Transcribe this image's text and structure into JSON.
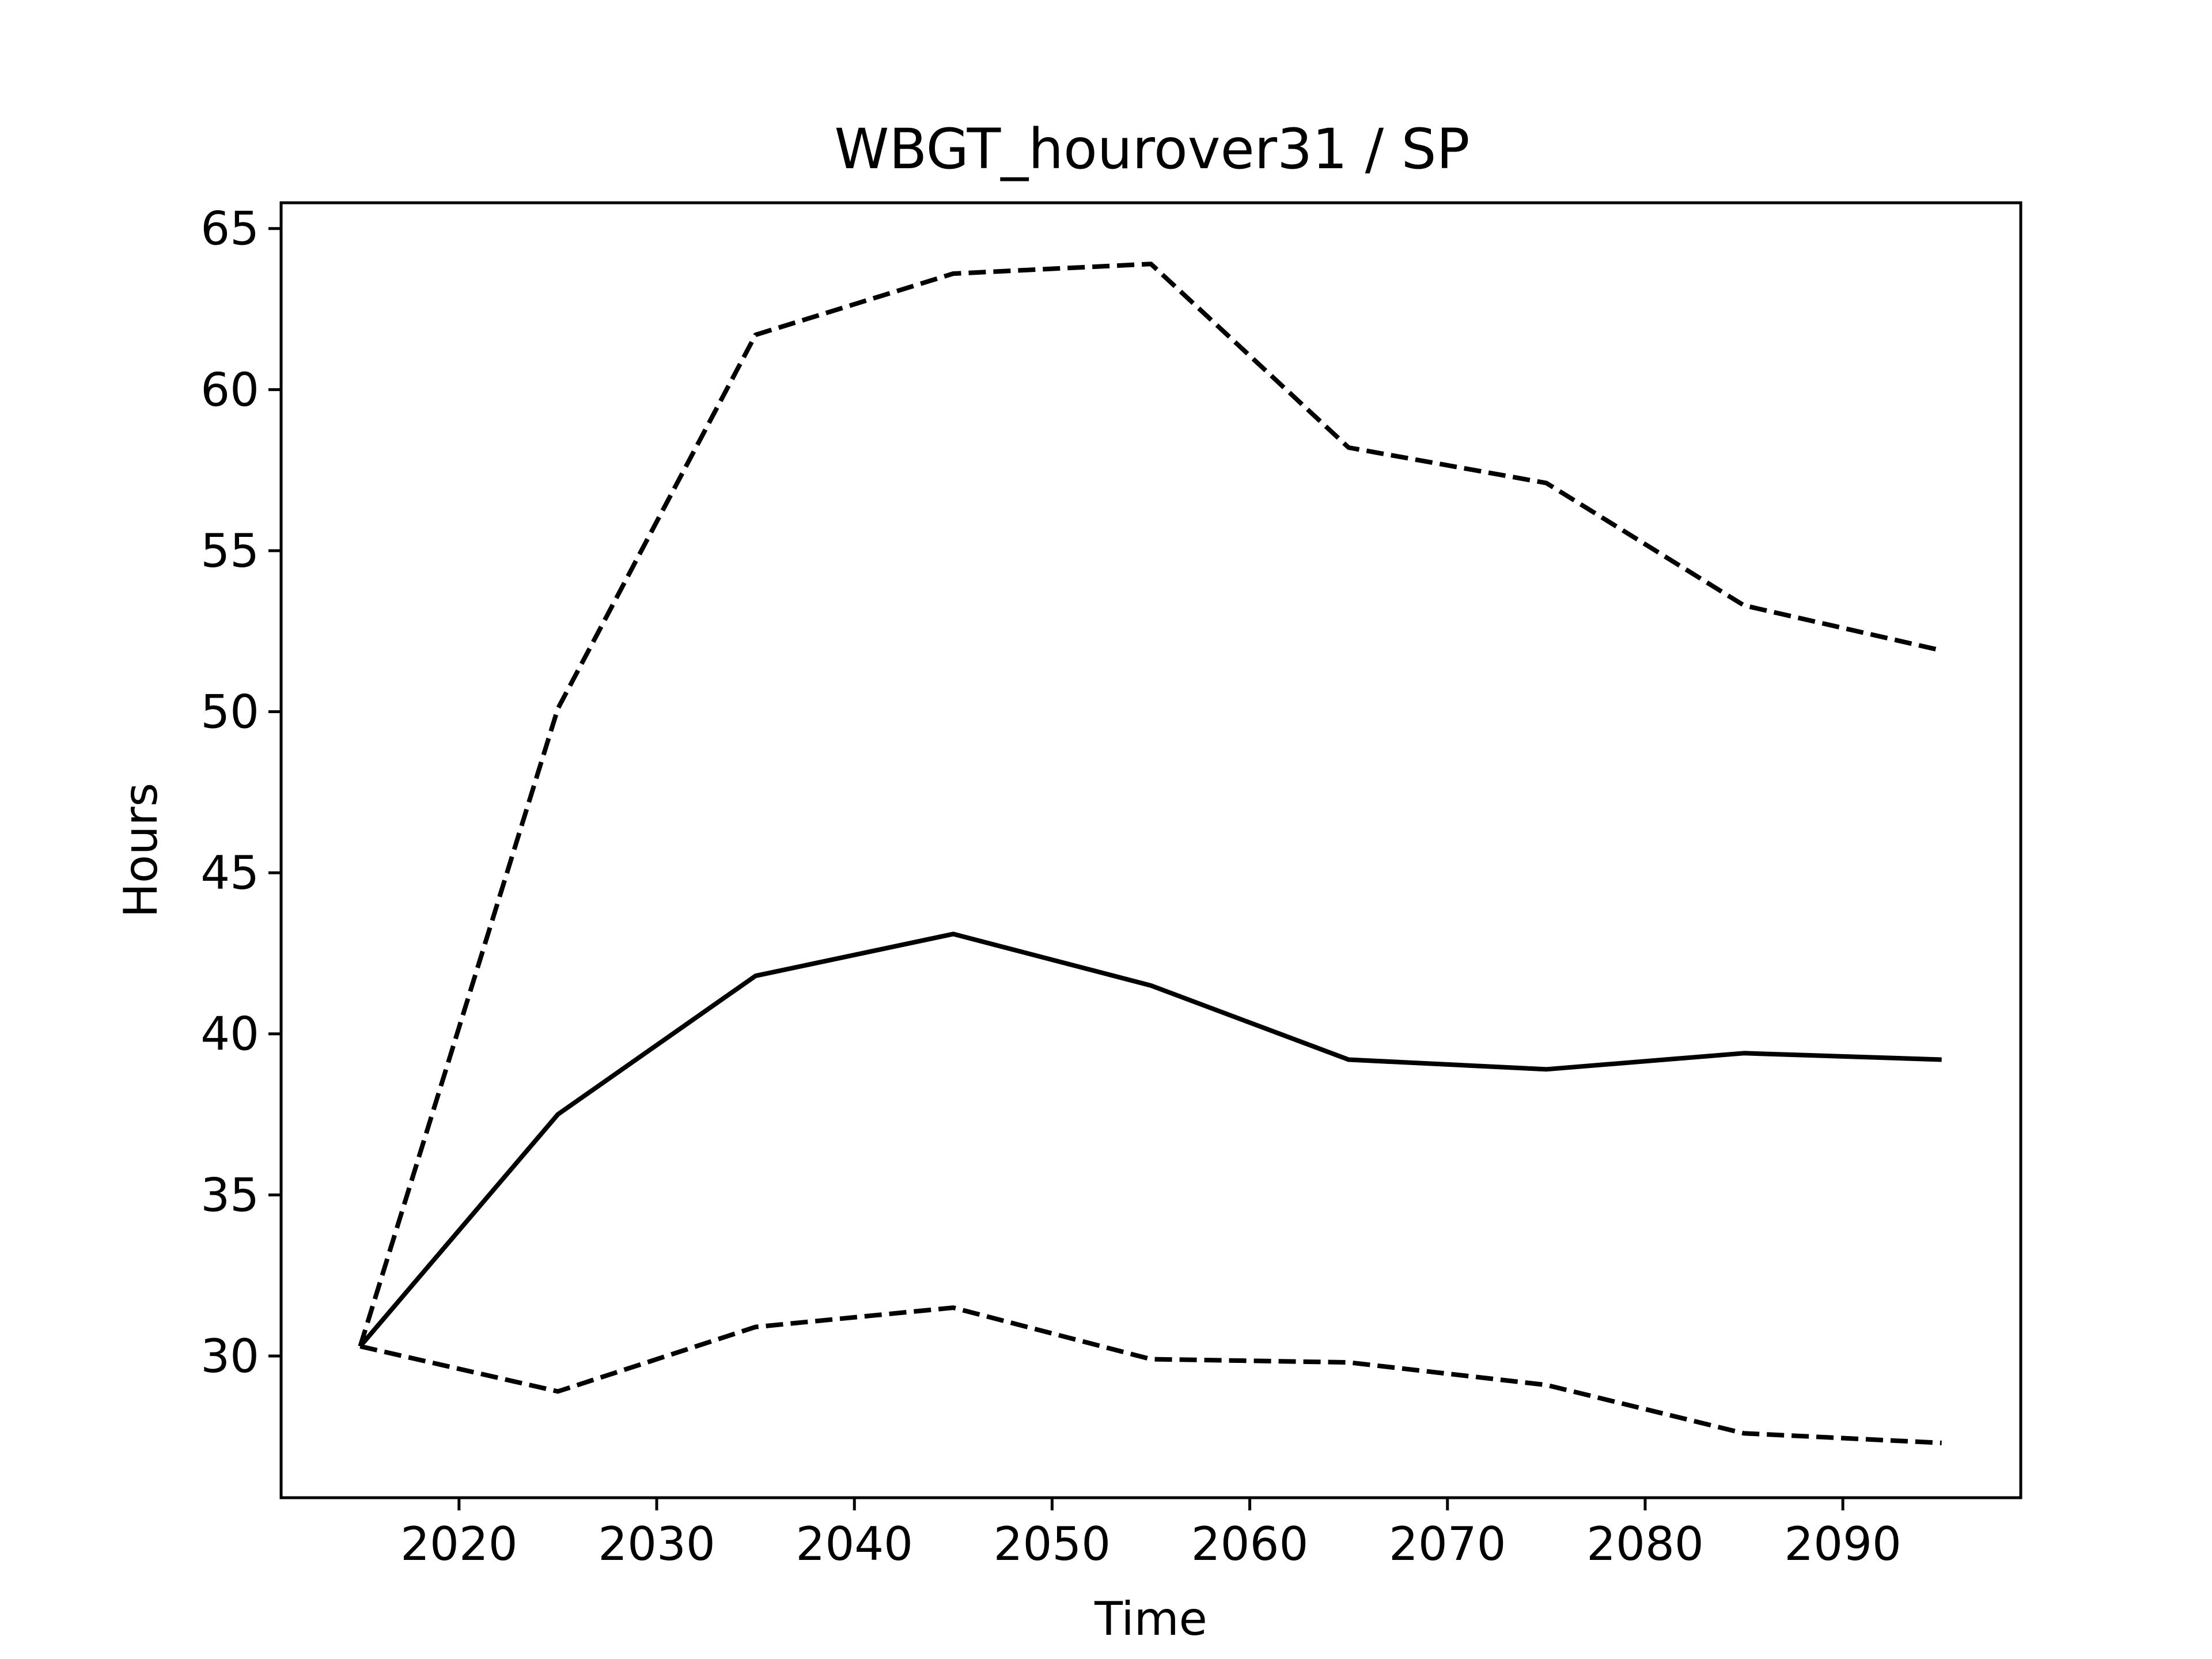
{
  "chart_data": {
    "type": "line",
    "title": "WBGT_hourover31 / SP",
    "xlabel": "Time",
    "ylabel": "Hours",
    "xlim": [
      2011,
      2099
    ],
    "ylim": [
      25.6,
      65.8
    ],
    "xticks": [
      2020,
      2030,
      2040,
      2050,
      2060,
      2070,
      2080,
      2090
    ],
    "yticks": [
      30,
      35,
      40,
      45,
      50,
      55,
      60,
      65
    ],
    "grid": false,
    "legend": "none",
    "x": [
      2015,
      2025,
      2035,
      2045,
      2055,
      2065,
      2075,
      2085,
      2095
    ],
    "series": [
      {
        "style": "dashed",
        "color": "#000000",
        "values": [
          30.3,
          50.1,
          61.7,
          63.6,
          63.9,
          58.2,
          57.1,
          53.3,
          51.9
        ]
      },
      {
        "style": "solid",
        "color": "#000000",
        "values": [
          30.3,
          37.5,
          41.8,
          43.1,
          41.5,
          39.2,
          38.9,
          39.4,
          39.2
        ]
      },
      {
        "style": "dashed",
        "color": "#000000",
        "values": [
          30.3,
          28.9,
          30.9,
          31.5,
          29.9,
          29.8,
          29.1,
          27.6,
          27.3
        ]
      }
    ]
  }
}
